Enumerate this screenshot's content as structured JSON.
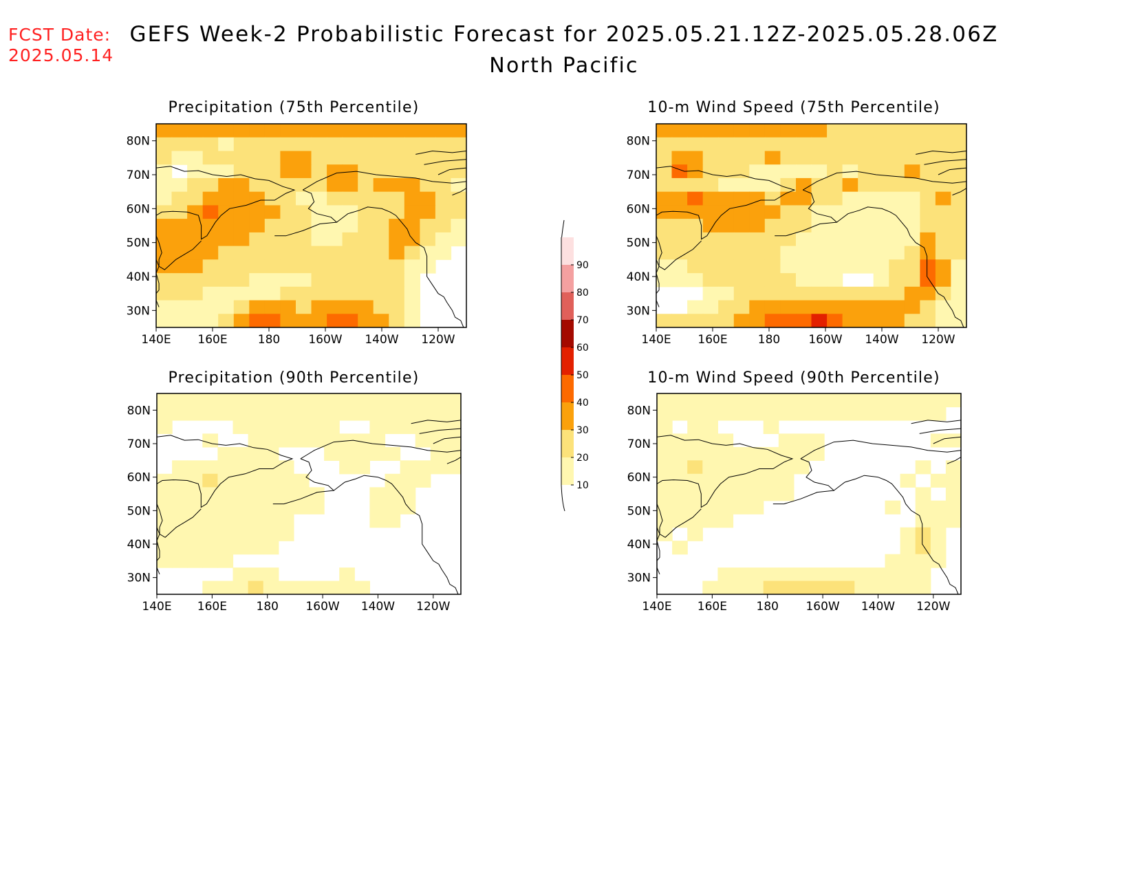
{
  "header": {
    "fcst_label": "FCST Date:",
    "fcst_date": "2025.05.14",
    "title_line1": "GEFS Week-2 Probabilistic Forecast for 2025.05.21.12Z-2025.05.28.06Z",
    "title_line2": "North Pacific"
  },
  "axes": {
    "lon_ticks": [
      "140E",
      "160E",
      "180",
      "160W",
      "140W",
      "120W"
    ],
    "lat_ticks": [
      "80N",
      "70N",
      "60N",
      "50N",
      "40N",
      "30N"
    ]
  },
  "panels": [
    {
      "id": "precip-75",
      "title": "Precipitation (75th Percentile)",
      "intensity": 0.62
    },
    {
      "id": "wind-75",
      "title": "10-m Wind Speed (75th Percentile)",
      "intensity": 0.66
    },
    {
      "id": "precip-90",
      "title": "Precipitation (90th Percentile)",
      "intensity": 0.22
    },
    {
      "id": "wind-90",
      "title": "10-m Wind Speed (90th Percentile)",
      "intensity": 0.25
    }
  ],
  "colorbar": {
    "levels": [
      "10",
      "20",
      "30",
      "40",
      "50",
      "60",
      "70",
      "80",
      "90"
    ],
    "colors": [
      "#fff7b0",
      "#fce27a",
      "#fba10c",
      "#fd6a00",
      "#e32000",
      "#a40a00",
      "#e0605a",
      "#f4a0a0",
      "#fde0e0"
    ]
  },
  "map_fields": {
    "precip-75": [
      [
        3,
        3,
        3,
        3,
        3,
        3,
        3,
        3,
        3,
        3,
        3,
        3,
        3,
        3,
        3,
        3,
        3,
        3,
        3,
        3
      ],
      [
        2,
        2,
        2,
        2,
        1,
        2,
        2,
        2,
        2,
        2,
        2,
        2,
        2,
        2,
        2,
        2,
        2,
        2,
        2,
        2
      ],
      [
        2,
        1,
        1,
        2,
        2,
        2,
        2,
        2,
        3,
        3,
        2,
        2,
        2,
        2,
        2,
        2,
        2,
        2,
        2,
        2
      ],
      [
        1,
        0,
        1,
        1,
        1,
        2,
        2,
        2,
        3,
        3,
        2,
        3,
        3,
        2,
        2,
        2,
        2,
        2,
        2,
        2
      ],
      [
        1,
        1,
        2,
        2,
        3,
        3,
        2,
        2,
        2,
        2,
        2,
        3,
        3,
        2,
        3,
        3,
        3,
        2,
        2,
        1
      ],
      [
        1,
        2,
        2,
        3,
        3,
        3,
        3,
        2,
        2,
        1,
        1,
        2,
        2,
        2,
        2,
        2,
        3,
        3,
        2,
        2
      ],
      [
        2,
        2,
        3,
        4,
        3,
        3,
        3,
        3,
        2,
        2,
        1,
        1,
        1,
        2,
        2,
        2,
        3,
        3,
        2,
        2
      ],
      [
        3,
        3,
        3,
        3,
        3,
        3,
        3,
        2,
        2,
        2,
        1,
        1,
        1,
        2,
        2,
        3,
        3,
        2,
        2,
        1
      ],
      [
        3,
        3,
        3,
        3,
        3,
        3,
        2,
        2,
        2,
        2,
        1,
        1,
        2,
        2,
        2,
        3,
        3,
        2,
        1,
        1
      ],
      [
        3,
        3,
        3,
        3,
        2,
        2,
        2,
        2,
        2,
        2,
        2,
        2,
        2,
        2,
        2,
        3,
        2,
        1,
        1,
        0
      ],
      [
        3,
        3,
        3,
        2,
        2,
        2,
        2,
        2,
        2,
        2,
        2,
        2,
        2,
        2,
        2,
        2,
        1,
        1,
        0,
        0
      ],
      [
        2,
        2,
        2,
        2,
        2,
        2,
        1,
        1,
        1,
        1,
        2,
        2,
        2,
        2,
        2,
        2,
        1,
        0,
        0,
        0
      ],
      [
        2,
        2,
        2,
        1,
        1,
        1,
        1,
        1,
        2,
        2,
        2,
        2,
        2,
        2,
        2,
        2,
        1,
        0,
        0,
        0
      ],
      [
        1,
        1,
        1,
        1,
        1,
        2,
        3,
        3,
        3,
        2,
        3,
        3,
        3,
        3,
        2,
        2,
        1,
        0,
        0,
        0
      ],
      [
        1,
        1,
        1,
        1,
        2,
        3,
        4,
        4,
        3,
        3,
        3,
        4,
        4,
        3,
        3,
        2,
        1,
        0,
        0,
        0
      ]
    ],
    "wind-75": [
      [
        3,
        3,
        3,
        3,
        3,
        3,
        3,
        3,
        3,
        3,
        3,
        2,
        2,
        2,
        2,
        2,
        2,
        2,
        2,
        2
      ],
      [
        2,
        2,
        2,
        2,
        2,
        2,
        2,
        2,
        2,
        2,
        2,
        2,
        2,
        2,
        2,
        2,
        2,
        2,
        2,
        2
      ],
      [
        2,
        3,
        3,
        2,
        2,
        2,
        2,
        3,
        2,
        2,
        2,
        2,
        2,
        2,
        2,
        2,
        2,
        2,
        2,
        2
      ],
      [
        2,
        4,
        3,
        2,
        2,
        2,
        1,
        1,
        1,
        1,
        1,
        2,
        1,
        2,
        2,
        2,
        3,
        2,
        2,
        2
      ],
      [
        2,
        2,
        2,
        2,
        1,
        1,
        1,
        1,
        2,
        3,
        2,
        2,
        3,
        2,
        2,
        2,
        2,
        2,
        2,
        2
      ],
      [
        3,
        3,
        4,
        3,
        3,
        3,
        3,
        2,
        3,
        3,
        2,
        2,
        1,
        1,
        1,
        1,
        1,
        2,
        3,
        2
      ],
      [
        3,
        3,
        3,
        3,
        3,
        3,
        3,
        3,
        2,
        2,
        1,
        1,
        1,
        1,
        1,
        1,
        1,
        2,
        2,
        2
      ],
      [
        2,
        2,
        2,
        3,
        3,
        3,
        3,
        2,
        2,
        2,
        1,
        1,
        1,
        1,
        1,
        1,
        1,
        2,
        2,
        2
      ],
      [
        2,
        2,
        2,
        2,
        2,
        2,
        2,
        2,
        2,
        1,
        1,
        1,
        1,
        1,
        1,
        1,
        1,
        3,
        2,
        2
      ],
      [
        2,
        2,
        2,
        2,
        2,
        2,
        2,
        2,
        1,
        1,
        1,
        1,
        1,
        1,
        1,
        1,
        2,
        3,
        2,
        2
      ],
      [
        1,
        1,
        2,
        2,
        2,
        2,
        2,
        2,
        1,
        1,
        1,
        1,
        1,
        1,
        1,
        2,
        2,
        4,
        3,
        1
      ],
      [
        1,
        1,
        1,
        2,
        2,
        2,
        2,
        2,
        2,
        1,
        1,
        1,
        0,
        0,
        1,
        2,
        2,
        4,
        3,
        1
      ],
      [
        0,
        0,
        0,
        1,
        1,
        2,
        2,
        2,
        2,
        2,
        2,
        2,
        2,
        2,
        2,
        2,
        3,
        3,
        2,
        1
      ],
      [
        0,
        0,
        1,
        1,
        2,
        2,
        3,
        3,
        3,
        3,
        3,
        3,
        3,
        3,
        3,
        3,
        3,
        2,
        1,
        1
      ],
      [
        2,
        2,
        2,
        2,
        2,
        3,
        3,
        4,
        4,
        4,
        5,
        4,
        3,
        3,
        3,
        3,
        2,
        2,
        1,
        1
      ]
    ],
    "precip-90": [
      [
        1,
        1,
        1,
        1,
        1,
        1,
        1,
        1,
        1,
        1,
        1,
        1,
        1,
        1,
        1,
        1,
        1,
        1,
        1,
        1
      ],
      [
        1,
        1,
        1,
        1,
        1,
        1,
        1,
        1,
        1,
        1,
        1,
        1,
        1,
        1,
        1,
        1,
        1,
        1,
        1,
        1
      ],
      [
        1,
        0,
        0,
        0,
        0,
        1,
        1,
        1,
        1,
        1,
        1,
        1,
        0,
        0,
        1,
        1,
        1,
        1,
        1,
        1
      ],
      [
        0,
        0,
        0,
        1,
        0,
        0,
        1,
        1,
        1,
        1,
        1,
        1,
        1,
        1,
        1,
        0,
        0,
        1,
        1,
        1
      ],
      [
        0,
        0,
        0,
        0,
        1,
        1,
        1,
        1,
        0,
        0,
        0,
        1,
        1,
        1,
        1,
        1,
        0,
        0,
        1,
        1
      ],
      [
        0,
        1,
        1,
        1,
        1,
        1,
        1,
        1,
        1,
        0,
        0,
        0,
        1,
        1,
        0,
        0,
        1,
        1,
        1,
        1
      ],
      [
        1,
        1,
        1,
        2,
        1,
        1,
        1,
        1,
        1,
        1,
        0,
        0,
        0,
        0,
        0,
        1,
        1,
        1,
        0,
        0
      ],
      [
        1,
        1,
        1,
        1,
        1,
        1,
        1,
        1,
        1,
        1,
        1,
        0,
        0,
        0,
        1,
        1,
        1,
        0,
        0,
        0
      ],
      [
        1,
        1,
        1,
        1,
        1,
        1,
        1,
        1,
        1,
        1,
        1,
        0,
        0,
        0,
        1,
        1,
        1,
        0,
        0,
        0
      ],
      [
        1,
        1,
        1,
        1,
        1,
        1,
        1,
        1,
        1,
        0,
        0,
        0,
        0,
        0,
        1,
        1,
        0,
        0,
        0,
        0
      ],
      [
        1,
        1,
        1,
        1,
        1,
        1,
        1,
        1,
        1,
        0,
        0,
        0,
        0,
        0,
        0,
        0,
        0,
        0,
        0,
        0
      ],
      [
        1,
        1,
        1,
        1,
        1,
        1,
        1,
        1,
        0,
        0,
        0,
        0,
        0,
        0,
        0,
        0,
        0,
        0,
        0,
        0
      ],
      [
        1,
        1,
        1,
        1,
        1,
        0,
        0,
        0,
        0,
        0,
        0,
        0,
        0,
        0,
        0,
        0,
        0,
        0,
        0,
        0
      ],
      [
        0,
        0,
        0,
        0,
        0,
        1,
        1,
        1,
        0,
        0,
        0,
        0,
        1,
        0,
        0,
        0,
        0,
        0,
        0,
        0
      ],
      [
        0,
        0,
        0,
        1,
        1,
        1,
        2,
        1,
        1,
        1,
        1,
        1,
        1,
        1,
        0,
        0,
        0,
        0,
        0,
        0
      ]
    ],
    "wind-90": [
      [
        1,
        1,
        1,
        1,
        1,
        1,
        1,
        1,
        1,
        1,
        1,
        1,
        1,
        1,
        1,
        1,
        1,
        1,
        1,
        1
      ],
      [
        1,
        1,
        1,
        1,
        1,
        1,
        1,
        1,
        1,
        1,
        1,
        1,
        1,
        1,
        1,
        1,
        1,
        1,
        1,
        0
      ],
      [
        1,
        0,
        1,
        1,
        0,
        0,
        0,
        1,
        0,
        0,
        0,
        0,
        0,
        0,
        0,
        0,
        0,
        0,
        0,
        0
      ],
      [
        1,
        1,
        1,
        1,
        1,
        0,
        0,
        0,
        1,
        1,
        1,
        0,
        0,
        0,
        0,
        0,
        0,
        0,
        1,
        1
      ],
      [
        1,
        1,
        1,
        1,
        1,
        1,
        1,
        1,
        1,
        1,
        1,
        0,
        0,
        0,
        0,
        0,
        0,
        0,
        0,
        0
      ],
      [
        1,
        1,
        2,
        1,
        1,
        1,
        1,
        1,
        1,
        1,
        0,
        0,
        0,
        0,
        0,
        0,
        0,
        1,
        0,
        1
      ],
      [
        1,
        1,
        1,
        1,
        1,
        1,
        1,
        1,
        1,
        0,
        0,
        0,
        0,
        0,
        0,
        0,
        1,
        0,
        1,
        1
      ],
      [
        1,
        1,
        1,
        1,
        1,
        1,
        1,
        1,
        1,
        0,
        0,
        0,
        0,
        0,
        0,
        0,
        0,
        1,
        0,
        1
      ],
      [
        1,
        1,
        1,
        1,
        1,
        1,
        1,
        0,
        0,
        0,
        0,
        0,
        0,
        0,
        0,
        1,
        0,
        1,
        1,
        1
      ],
      [
        1,
        1,
        1,
        1,
        1,
        0,
        0,
        0,
        0,
        0,
        0,
        0,
        0,
        0,
        0,
        0,
        0,
        1,
        1,
        1
      ],
      [
        1,
        0,
        1,
        0,
        0,
        0,
        0,
        0,
        0,
        0,
        0,
        0,
        0,
        0,
        0,
        0,
        1,
        2,
        1,
        0
      ],
      [
        0,
        1,
        0,
        0,
        0,
        0,
        0,
        0,
        0,
        0,
        0,
        0,
        0,
        0,
        0,
        0,
        1,
        2,
        1,
        0
      ],
      [
        0,
        0,
        0,
        0,
        0,
        0,
        0,
        0,
        0,
        0,
        0,
        0,
        0,
        0,
        0,
        1,
        1,
        1,
        1,
        0
      ],
      [
        0,
        0,
        0,
        0,
        1,
        1,
        1,
        1,
        1,
        1,
        1,
        1,
        1,
        1,
        1,
        1,
        1,
        1,
        0,
        0
      ],
      [
        0,
        0,
        0,
        1,
        1,
        1,
        1,
        2,
        2,
        2,
        2,
        2,
        2,
        1,
        1,
        1,
        1,
        1,
        0,
        0
      ]
    ]
  }
}
